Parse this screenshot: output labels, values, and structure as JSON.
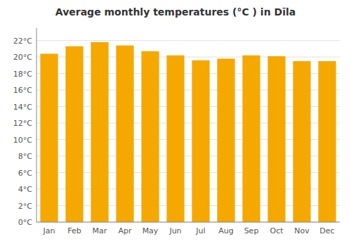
{
  "chart_data": {
    "type": "bar",
    "title": "Average monthly temperatures (°C ) in Dīla",
    "categories": [
      "Jan",
      "Feb",
      "Mar",
      "Apr",
      "May",
      "Jun",
      "Jul",
      "Aug",
      "Sep",
      "Oct",
      "Nov",
      "Dec"
    ],
    "values": [
      20.4,
      21.3,
      21.8,
      21.4,
      20.7,
      20.2,
      19.6,
      19.8,
      20.2,
      20.1,
      19.5,
      19.5
    ],
    "color": "#F5A800",
    "ylim": [
      0,
      23.5
    ],
    "yticks": [
      {
        "value": 0,
        "label": "0°C"
      },
      {
        "value": 2,
        "label": "2°C"
      },
      {
        "value": 4,
        "label": "4°C"
      },
      {
        "value": 6,
        "label": "6°C"
      },
      {
        "value": 8,
        "label": "8°C"
      },
      {
        "value": 10,
        "label": "10°C"
      },
      {
        "value": 12,
        "label": "12°C"
      },
      {
        "value": 14,
        "label": "14°C"
      },
      {
        "value": 16,
        "label": "16°C"
      },
      {
        "value": 18,
        "label": "18°C"
      },
      {
        "value": 20,
        "label": "20°C"
      },
      {
        "value": 22,
        "label": "22°C"
      }
    ],
    "grid": true
  }
}
